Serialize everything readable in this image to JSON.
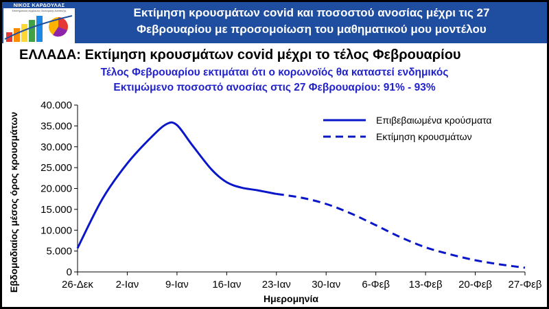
{
  "header": {
    "logo": {
      "name": "ΝΙΚΟΣ ΚΑΡΔΟΥΛΑΣ",
      "subtitle": "Επιστημονικός σύμβουλος Οικονομικής Ανάπτυξης"
    },
    "title_line1": "Εκτίμηση κρουσμάτων covid και ποσοστού ανοσίας μέχρι τις 27",
    "title_line2": "Φεβρουαρίου με προσομοίωση του μαθηματικού μου μοντέλου"
  },
  "chart_data": {
    "type": "line",
    "title": "ΕΛΛΑΔΑ: Εκτίμηση κρουσμάτων covid μέχρι το τέλος Φεβρουαρίου",
    "subtitle1": "Τέλος Φεβρουαρίου εκτιμάται ότι ο κορωνοϊός θα καταστεί ενδημικός",
    "subtitle2": "Εκτιμώμενο ποσοστό ανοσίας στις 27 Φεβρουαρίου: 91% - 93%",
    "xlabel": "Ημερομηνία",
    "ylabel": "Εβδομαδιαίος μέσος όρος κρουσμάτων",
    "categories": [
      "26-Δεκ",
      "2-Ιαν",
      "9-Ιαν",
      "16-Ιαν",
      "23-Ιαν",
      "30-Ιαν",
      "6-Φεβ",
      "13-Φεβ",
      "20-Φεβ",
      "27-Φεβ"
    ],
    "yticks": [
      "0",
      "5.000",
      "10.000",
      "15.000",
      "20.000",
      "25.000",
      "30.000",
      "35.000",
      "40.000"
    ],
    "ylim": [
      0,
      40000
    ],
    "grid": false,
    "legend_position": "top-right",
    "color": "#0a17c9",
    "series": [
      {
        "name": "Επιβεβαιωμένα κρούσματα",
        "style": "solid",
        "x": [
          0,
          0.5,
          1,
          1.5,
          1.8,
          2,
          2.3,
          2.7,
          3,
          3.3,
          3.6,
          4
        ],
        "y": [
          5700,
          17500,
          26000,
          32500,
          35500,
          35200,
          30500,
          24500,
          21500,
          20200,
          19600,
          18700
        ]
      },
      {
        "name": "Εκτίμηση κρουσμάτων",
        "style": "dashed",
        "x": [
          4,
          4.5,
          5,
          5.5,
          6,
          6.5,
          7,
          7.5,
          8,
          8.5,
          9
        ],
        "y": [
          18700,
          17800,
          16300,
          14000,
          11200,
          8300,
          5900,
          4200,
          2800,
          1800,
          1000
        ]
      }
    ]
  }
}
